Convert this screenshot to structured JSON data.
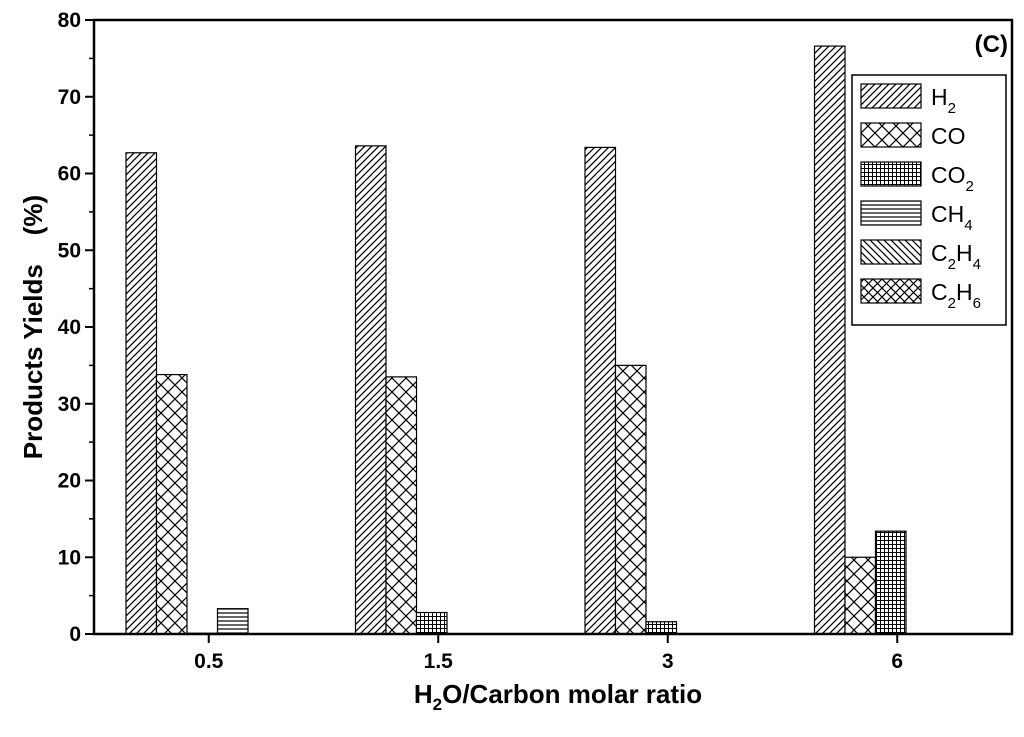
{
  "chart_data": {
    "type": "bar",
    "panel_label": "(C)",
    "xlabel": {
      "pre": "H",
      "sub": "2",
      "post": "O/Carbon molar ratio"
    },
    "ylabel": "Products Yields    (%)",
    "ylim": [
      0,
      80
    ],
    "yticks": [
      "0",
      "10",
      "20",
      "30",
      "40",
      "50",
      "60",
      "70",
      "80"
    ],
    "categories": [
      "0.5",
      "1.5",
      "3",
      "6"
    ],
    "legend_position": "top-right",
    "series": [
      {
        "name": "H2",
        "label_main": "H",
        "label_sub": "2",
        "label_tail": "",
        "label_tail_sub": "",
        "pattern": "hatch-diag",
        "values": [
          62.7,
          63.6,
          63.4,
          76.6
        ]
      },
      {
        "name": "CO",
        "label_main": "CO",
        "label_sub": "",
        "label_tail": "",
        "label_tail_sub": "",
        "pattern": "hatch-cross",
        "values": [
          33.8,
          33.5,
          35.0,
          10.0
        ]
      },
      {
        "name": "CO2",
        "label_main": "CO",
        "label_sub": "2",
        "label_tail": "",
        "label_tail_sub": "",
        "pattern": "hatch-grid",
        "values": [
          0.1,
          2.8,
          1.6,
          13.4
        ]
      },
      {
        "name": "CH4",
        "label_main": "CH",
        "label_sub": "4",
        "label_tail": "",
        "label_tail_sub": "",
        "pattern": "hatch-horiz",
        "values": [
          3.3,
          0,
          0,
          0
        ]
      },
      {
        "name": "C2H4",
        "label_main": "C",
        "label_sub": "2",
        "label_tail": "H",
        "label_tail_sub": "4",
        "pattern": "hatch-back",
        "values": [
          0,
          0,
          0,
          0
        ]
      },
      {
        "name": "C2H6",
        "label_main": "C",
        "label_sub": "2",
        "label_tail": "H",
        "label_tail_sub": "6",
        "pattern": "hatch-xcross",
        "values": [
          0,
          0,
          0,
          0
        ]
      }
    ]
  }
}
